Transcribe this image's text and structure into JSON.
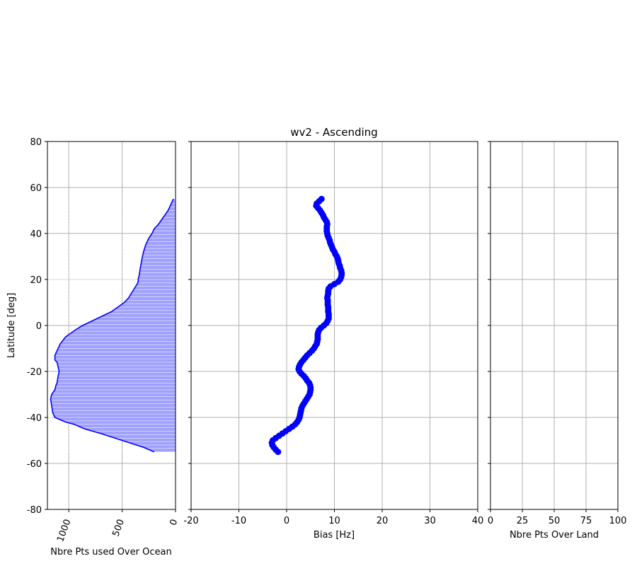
{
  "chart_data": [
    {
      "type": "area",
      "xlabel": "Nbre Pts used Over Ocean",
      "ylabel": "Latitude [deg]",
      "xlim": [
        1200,
        0
      ],
      "ylim": [
        -80,
        80
      ],
      "xticks": [
        1000,
        500,
        0
      ],
      "yticks": [
        -80,
        -60,
        -40,
        -20,
        0,
        20,
        40,
        60,
        80
      ],
      "grid": true,
      "color": "#0000ff",
      "fill_color": "#a0a0ff",
      "y": [
        -55,
        -53,
        -50,
        -47,
        -45,
        -43,
        -42,
        -40,
        -38,
        -35,
        -32,
        -30,
        -28,
        -26,
        -25,
        -22,
        -20,
        -18,
        -16,
        -15,
        -13,
        -11,
        -8,
        -5,
        -4,
        -2,
        0,
        2,
        4,
        6,
        8,
        10,
        12,
        15,
        18,
        19,
        20,
        22,
        25,
        30,
        32,
        35,
        38,
        40,
        42,
        44,
        46,
        48,
        50,
        52,
        54,
        55
      ],
      "x": [
        200,
        300,
        500,
        700,
        850,
        950,
        1030,
        1130,
        1150,
        1160,
        1170,
        1160,
        1130,
        1120,
        1110,
        1100,
        1090,
        1100,
        1110,
        1130,
        1130,
        1110,
        1080,
        1030,
        1000,
        940,
        870,
        780,
        690,
        600,
        540,
        480,
        440,
        400,
        360,
        350,
        350,
        340,
        330,
        310,
        300,
        280,
        250,
        220,
        200,
        160,
        130,
        100,
        70,
        50,
        30,
        20
      ]
    },
    {
      "type": "scatter",
      "title": "wv2 - Ascending",
      "xlabel": "Bias [Hz]",
      "ylabel": "",
      "xlim": [
        -20,
        40
      ],
      "ylim": [
        -80,
        80
      ],
      "xticks": [
        -20,
        -10,
        0,
        10,
        20,
        30,
        40
      ],
      "grid": true,
      "color": "#0000ff",
      "y": [
        -55,
        -54,
        -53,
        -52,
        -51,
        -50,
        -49,
        -48,
        -47,
        -46,
        -45,
        -44,
        -43,
        -42,
        -41,
        -40,
        -39,
        -38,
        -37,
        -36,
        -35,
        -34,
        -33,
        -32,
        -31,
        -30,
        -29,
        -28,
        -27,
        -26,
        -25,
        -24,
        -23,
        -22,
        -21,
        -20,
        -19,
        -18,
        -17,
        -16,
        -15,
        -14,
        -13,
        -12,
        -11,
        -10,
        -9,
        -8,
        -7,
        -6,
        -5,
        -4,
        -3,
        -2,
        -1,
        0,
        1,
        2,
        3,
        4,
        5,
        6,
        7,
        8,
        9,
        10,
        11,
        12,
        13,
        14,
        15,
        16,
        17,
        18,
        19,
        20,
        21,
        22,
        23,
        24,
        25,
        26,
        27,
        28,
        29,
        30,
        31,
        32,
        33,
        34,
        35,
        36,
        37,
        38,
        39,
        40,
        41,
        42,
        43,
        44,
        45,
        46,
        47,
        48,
        49,
        50,
        51,
        52,
        53,
        54,
        55
      ],
      "x": [
        -1.8,
        -2.3,
        -2.7,
        -3.0,
        -3.1,
        -2.9,
        -2.3,
        -1.6,
        -0.9,
        -0.2,
        0.5,
        1.2,
        1.8,
        2.2,
        2.5,
        2.7,
        2.8,
        2.9,
        3.0,
        3.1,
        3.3,
        3.6,
        3.9,
        4.2,
        4.5,
        4.8,
        4.9,
        5.0,
        5.0,
        4.9,
        4.7,
        4.3,
        4.0,
        3.6,
        3.1,
        2.7,
        2.5,
        2.6,
        2.8,
        3.1,
        3.5,
        3.9,
        4.3,
        4.8,
        5.3,
        5.7,
        6.0,
        6.3,
        6.4,
        6.5,
        6.5,
        6.5,
        6.6,
        6.8,
        7.2,
        7.8,
        8.3,
        8.6,
        8.8,
        8.8,
        8.8,
        8.7,
        8.7,
        8.7,
        8.6,
        8.6,
        8.6,
        8.5,
        8.6,
        8.7,
        8.7,
        8.8,
        9.2,
        10.0,
        10.8,
        11.2,
        11.4,
        11.5,
        11.5,
        11.4,
        11.2,
        11.1,
        10.9,
        10.8,
        10.7,
        10.5,
        10.2,
        10.0,
        9.7,
        9.5,
        9.3,
        9.1,
        9.0,
        8.8,
        8.6,
        8.5,
        8.4,
        8.4,
        8.4,
        8.5,
        8.4,
        8.1,
        7.8,
        7.6,
        7.3,
        7.0,
        6.6,
        6.2,
        6.3,
        6.8,
        7.3
      ]
    },
    {
      "type": "line",
      "xlabel": "Nbre Pts Over Land",
      "ylabel": "",
      "xlim": [
        0,
        100
      ],
      "ylim": [
        -80,
        80
      ],
      "xticks": [
        0,
        25,
        50,
        75,
        100
      ],
      "grid": true
    }
  ]
}
